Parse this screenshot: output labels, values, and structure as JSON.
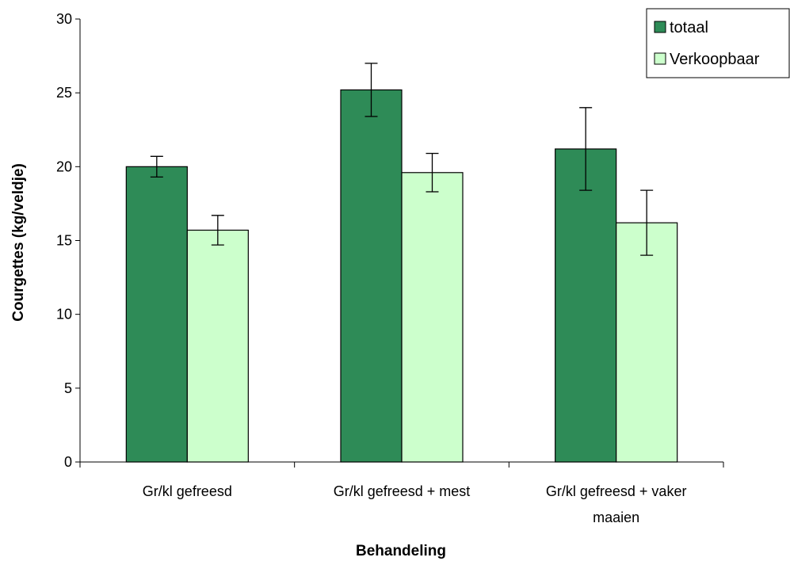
{
  "chart_data": {
    "type": "bar",
    "title": "",
    "xlabel": "Behandeling",
    "ylabel": "Courgettes (kg/veldje)",
    "ylim": [
      0,
      30
    ],
    "yticks": [
      0,
      5,
      10,
      15,
      20,
      25,
      30
    ],
    "categories": [
      [
        "Gr/kl gefreesd"
      ],
      [
        "Gr/kl gefreesd + mest"
      ],
      [
        "Gr/kl gefreesd + vaker",
        "maaien"
      ]
    ],
    "series": [
      {
        "name": "totaal",
        "color": "#2e8b57",
        "values": [
          20.0,
          25.2,
          21.2
        ],
        "error": [
          0.7,
          1.8,
          2.8
        ]
      },
      {
        "name": "Verkoopbaar",
        "color": "#ccffcc",
        "values": [
          15.7,
          19.6,
          16.2
        ],
        "error": [
          1.0,
          1.3,
          2.2
        ]
      }
    ],
    "legend_position": "top-right",
    "grid": false
  }
}
